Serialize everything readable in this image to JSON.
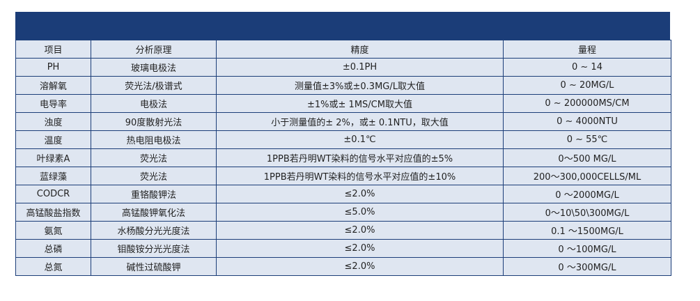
{
  "table": {
    "header": [
      "项目",
      "分析原理",
      "精度",
      "量程"
    ],
    "rows": [
      [
        "PH",
        "玻璃电极法",
        "±0.1PH",
        "0 ~ 14"
      ],
      [
        "溶解氧",
        "荧光法/极谱式",
        "测量值±3%或±0.3MG/L取大值",
        "0 ~ 20MG/L"
      ],
      [
        "电导率",
        "电极法",
        "±1%或± 1MS/CM取大值",
        "0 ~ 200000MS/CM"
      ],
      [
        "浊度",
        "90度散射光法",
        "小于测量值的± 2%，或± 0.1NTU，取大值",
        "0 ~ 4000NTU"
      ],
      [
        "温度",
        "热电阻电极法",
        "±0.1℃",
        "0 ~ 55℃"
      ],
      [
        "叶绿素A",
        "荧光法",
        "1PPB若丹明WT染料的信号水平对应值的±5%",
        "0～500 MG/L"
      ],
      [
        "蓝绿藻",
        "荧光法",
        "1PPB若丹明WT染料的信号水平对应值的±10%",
        "200～300,000CELLS/ML"
      ],
      [
        "CODCR",
        "重铬酸钾法",
        "≤2.0%",
        "0 ～2000MG/L"
      ],
      [
        "高锰酸盐指数",
        "高锰酸钾氧化法",
        "≤5.0%",
        "0～10\\50\\300MG/L"
      ],
      [
        "氨氮",
        "水杨酸分光光度法",
        "≤2.0%",
        "0.1 ～1500MG/L"
      ],
      [
        "总磷",
        "钼酸铵分光光度法",
        "≤2.0%",
        "0 ～100MG/L"
      ],
      [
        "总氮",
        "碱性过硫酸钾",
        "≤2.0%",
        "0 ～300MG/L"
      ]
    ]
  }
}
